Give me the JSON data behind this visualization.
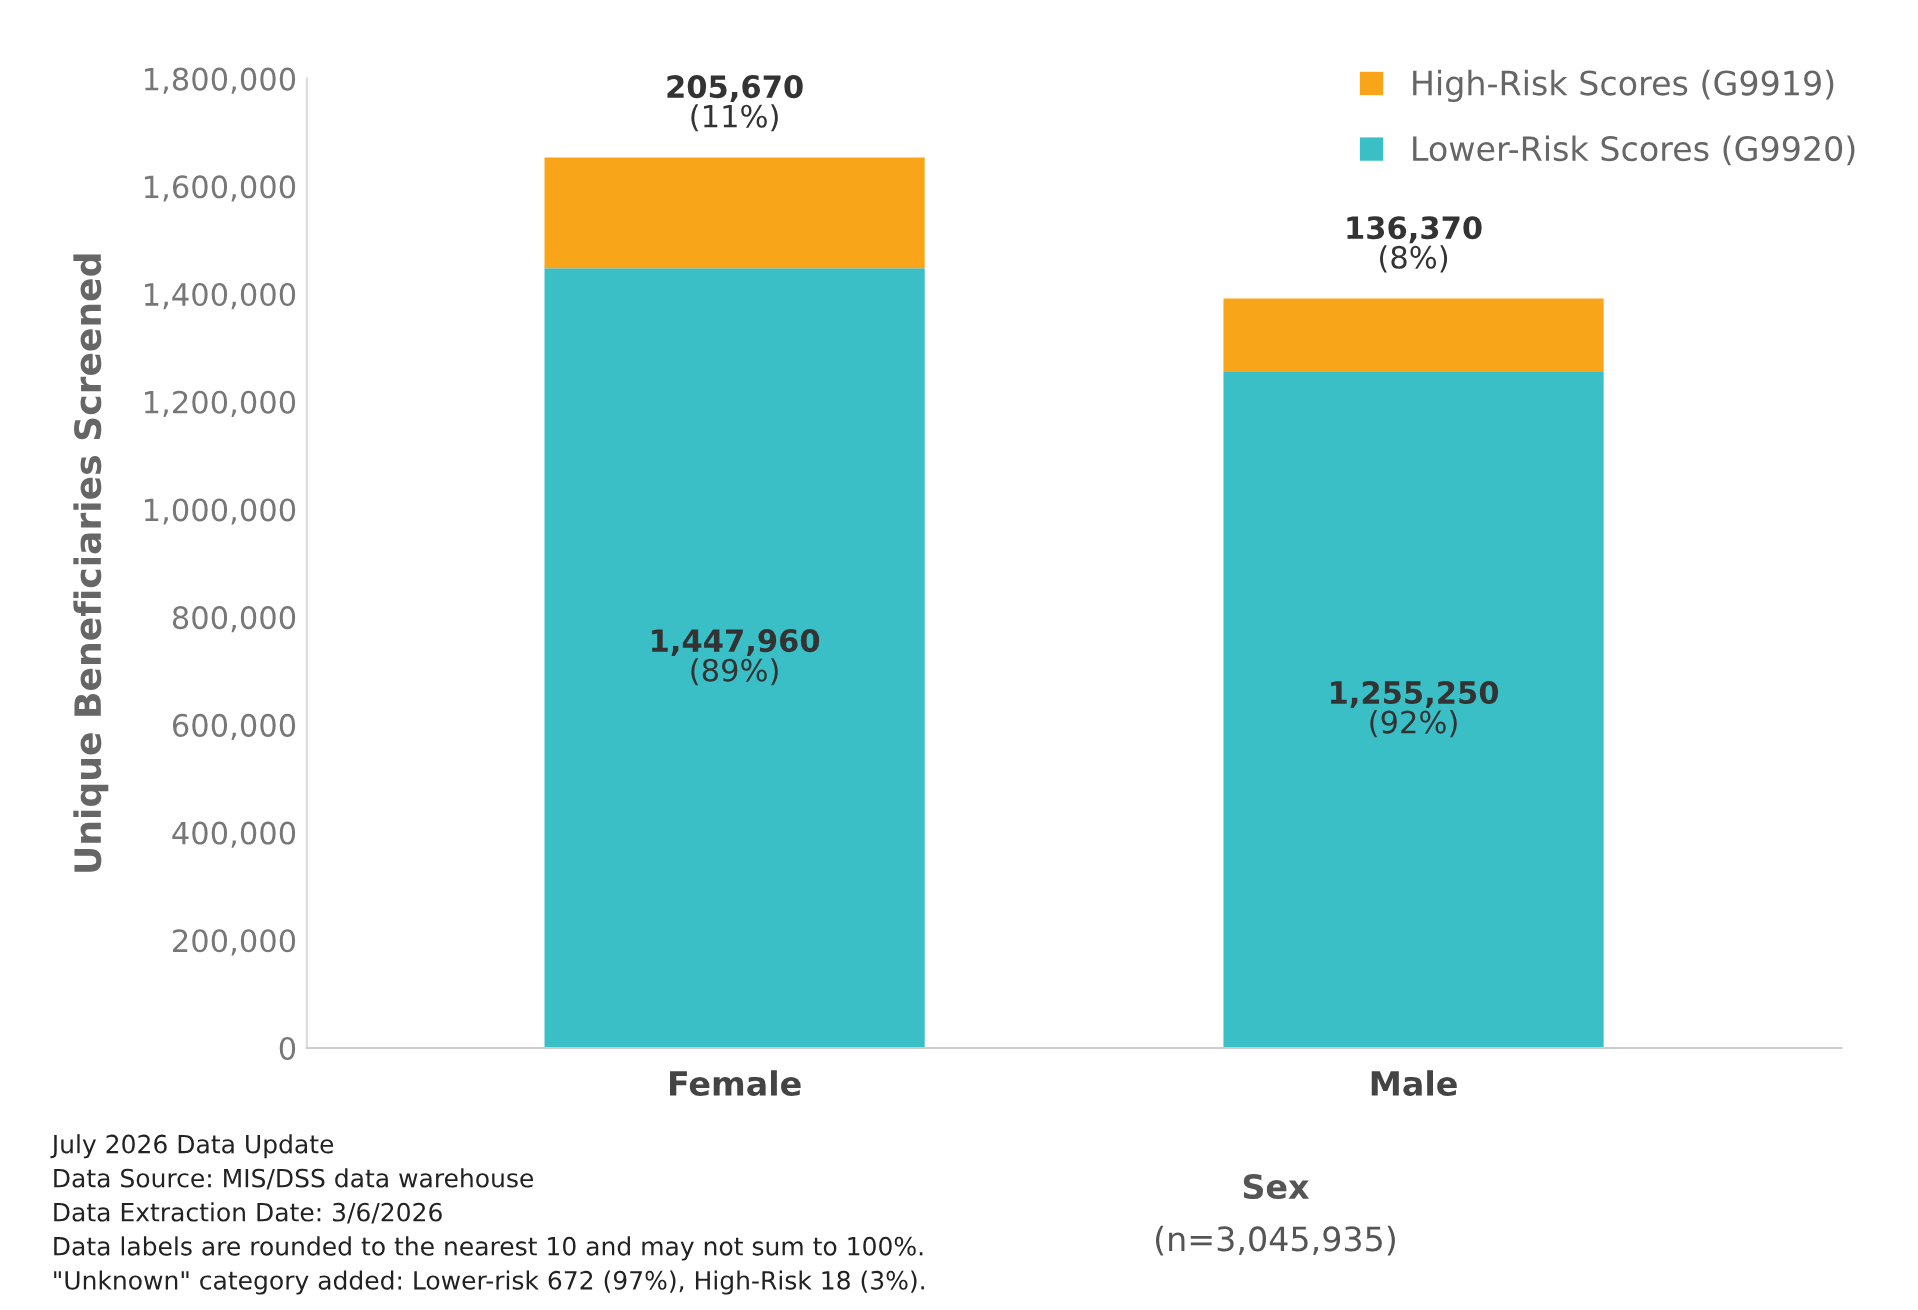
{
  "chart_data": {
    "type": "bar",
    "stacked": true,
    "ylabel": "Unique Beneficiaries Screened",
    "xlabel": "Sex\n(n=3,045,935)",
    "categories": [
      "Female",
      "Male"
    ],
    "series": [
      {
        "name": "Lower-Risk Scores (G9920)",
        "color": "#3bbfc6",
        "values": [
          1447960,
          1255250
        ],
        "value_labels": [
          "1,447,960\n(89%)",
          "1,255,250\n(92%)"
        ]
      },
      {
        "name": "High-Risk Scores (G9919)",
        "color": "#f9a51a",
        "values": [
          205670,
          136370
        ],
        "value_labels": [
          "205,670\n(11%)",
          "136,370\n(8%)"
        ]
      }
    ],
    "ylim": [
      0,
      1800000
    ],
    "yticks": [
      0,
      {
        "value": 200000,
        "label": "200,000"
      },
      {
        "value": 400000,
        "label": "400,000"
      },
      {
        "value": 600000,
        "label": "600,000"
      },
      {
        "value": 800000,
        "label": "800,000"
      },
      {
        "value": 1000000,
        "label": "1,000,000"
      },
      {
        "value": 1200000,
        "label": "1,200,000"
      },
      {
        "value": 1400000,
        "label": "1,400,000"
      },
      {
        "value": 1600000,
        "label": "1,600,000"
      },
      {
        "value": 1800000,
        "label": "1,800,000"
      }
    ],
    "grid": false,
    "legend": "top right",
    "annotations": [
      "July 2026 Data Update",
      "Data Source: MIS/DSS data warehouse",
      "Data Extraction Date: 3/6/2026",
      "Data labels are rounded to the nearest 10 and may not sum to 100%.",
      "\"Unknown\" category added: Lower-risk 672 (97%), High-Risk 18 (3%)."
    ]
  }
}
